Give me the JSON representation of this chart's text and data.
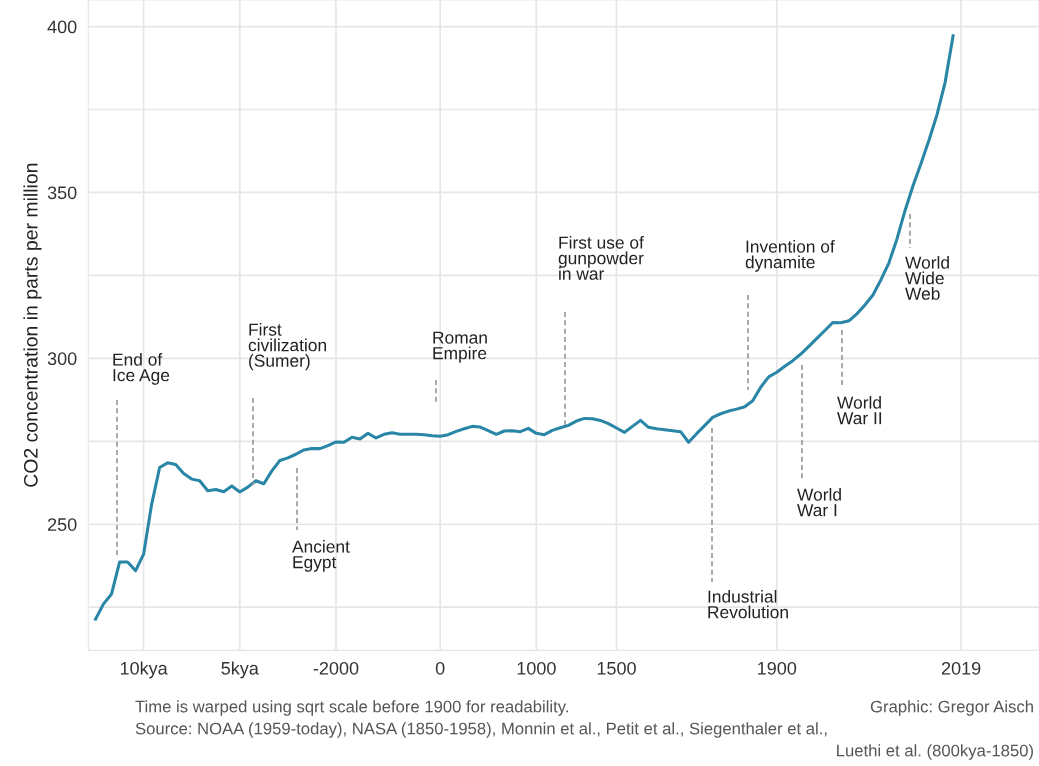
{
  "chart_data": {
    "type": "line",
    "ylabel": "CO2 concentration in parts per million",
    "categories": [
      null,
      null,
      null,
      null,
      null,
      null,
      "10kya",
      null,
      null,
      null,
      null,
      null,
      null,
      null,
      null,
      null,
      null,
      null,
      "5kya",
      null,
      null,
      null,
      null,
      null,
      null,
      null,
      null,
      null,
      null,
      null,
      "-2000",
      null,
      null,
      null,
      null,
      null,
      null,
      null,
      null,
      null,
      null,
      null,
      null,
      "0",
      null,
      null,
      null,
      null,
      null,
      null,
      null,
      null,
      null,
      null,
      null,
      "1000",
      null,
      null,
      null,
      null,
      null,
      null,
      null,
      null,
      null,
      "1500",
      null,
      null,
      null,
      null,
      null,
      null,
      null,
      null,
      null,
      null,
      null,
      null,
      null,
      null,
      null,
      null,
      null,
      null,
      null,
      "1900",
      null,
      null,
      null,
      null,
      null,
      null,
      null,
      null,
      null,
      null,
      null,
      null,
      null,
      null,
      null,
      null,
      null,
      null,
      null,
      null,
      null,
      null,
      "2019"
    ],
    "series": [
      {
        "color": "#2a86a6",
        "values": [
          221.4,
          226,
          229,
          238.6,
          238.6,
          236,
          241,
          256,
          267.1,
          268.5,
          268,
          265.3,
          263.6,
          263.1,
          260.1,
          260.5,
          259.8,
          261.5,
          259.7,
          261.2,
          263.1,
          262.2,
          266.1,
          269.2,
          270,
          271.1,
          272.4,
          272.8,
          272.8,
          273.7,
          274.8,
          274.7,
          276.2,
          275.7,
          277.4,
          276,
          277.1,
          277.6,
          277.1,
          277.1,
          277.1,
          277,
          276.7,
          276.5,
          277,
          278,
          278.8,
          279.5,
          279.3,
          278.2,
          277.1,
          278.1,
          278.2,
          277.9,
          278.9,
          277.4,
          277,
          278.3,
          279.1,
          279.8,
          281.1,
          281.9,
          281.8,
          281.3,
          280.3,
          279,
          277.7,
          279.5,
          281.3,
          279.2,
          278.8,
          278.5,
          278.2,
          277.9,
          274.7,
          277.3,
          279.7,
          282.2,
          283.3,
          284.1,
          284.7,
          285.4,
          287.2,
          291.3,
          294.4,
          295.8,
          297.6,
          299.3,
          301.3,
          303.6,
          306,
          308.4,
          310.8,
          310.7,
          311.3,
          313.4,
          316.1,
          319.1,
          323.7,
          328.8,
          336,
          344.5,
          352,
          358.7,
          365.8,
          373.5,
          383.1,
          397.2,
          null
        ]
      }
    ],
    "ylim": [
      212,
      408
    ],
    "yticks": [
      {
        "value": 225,
        "label": null
      },
      250,
      {
        "value": 275,
        "label": null
      },
      300,
      {
        "value": 325,
        "label": null
      },
      350,
      {
        "value": 375,
        "label": null
      },
      400
    ],
    "grid": true,
    "annotations": [
      "End of\nIce Age",
      "First\ncivilization\n(Sumer)",
      "Ancient\nEgypt",
      "Roman\nEmpire",
      "First use of\ngunpowder\nin war",
      "Industrial\nRevolution",
      "Invention of\ndynamite",
      "World\nWar I",
      "World\nWar II",
      "World\nWide\nWeb",
      "Time is warped using sqrt scale before 1900 for readability.",
      "Graphic: Gregor Aisch",
      "Source: NOAA (1959-today), NASA (1850-1958), Monnin et al., Petit et al., Siegenthaler et al.,",
      "Luethi et al. (800kya-1850)"
    ]
  }
}
